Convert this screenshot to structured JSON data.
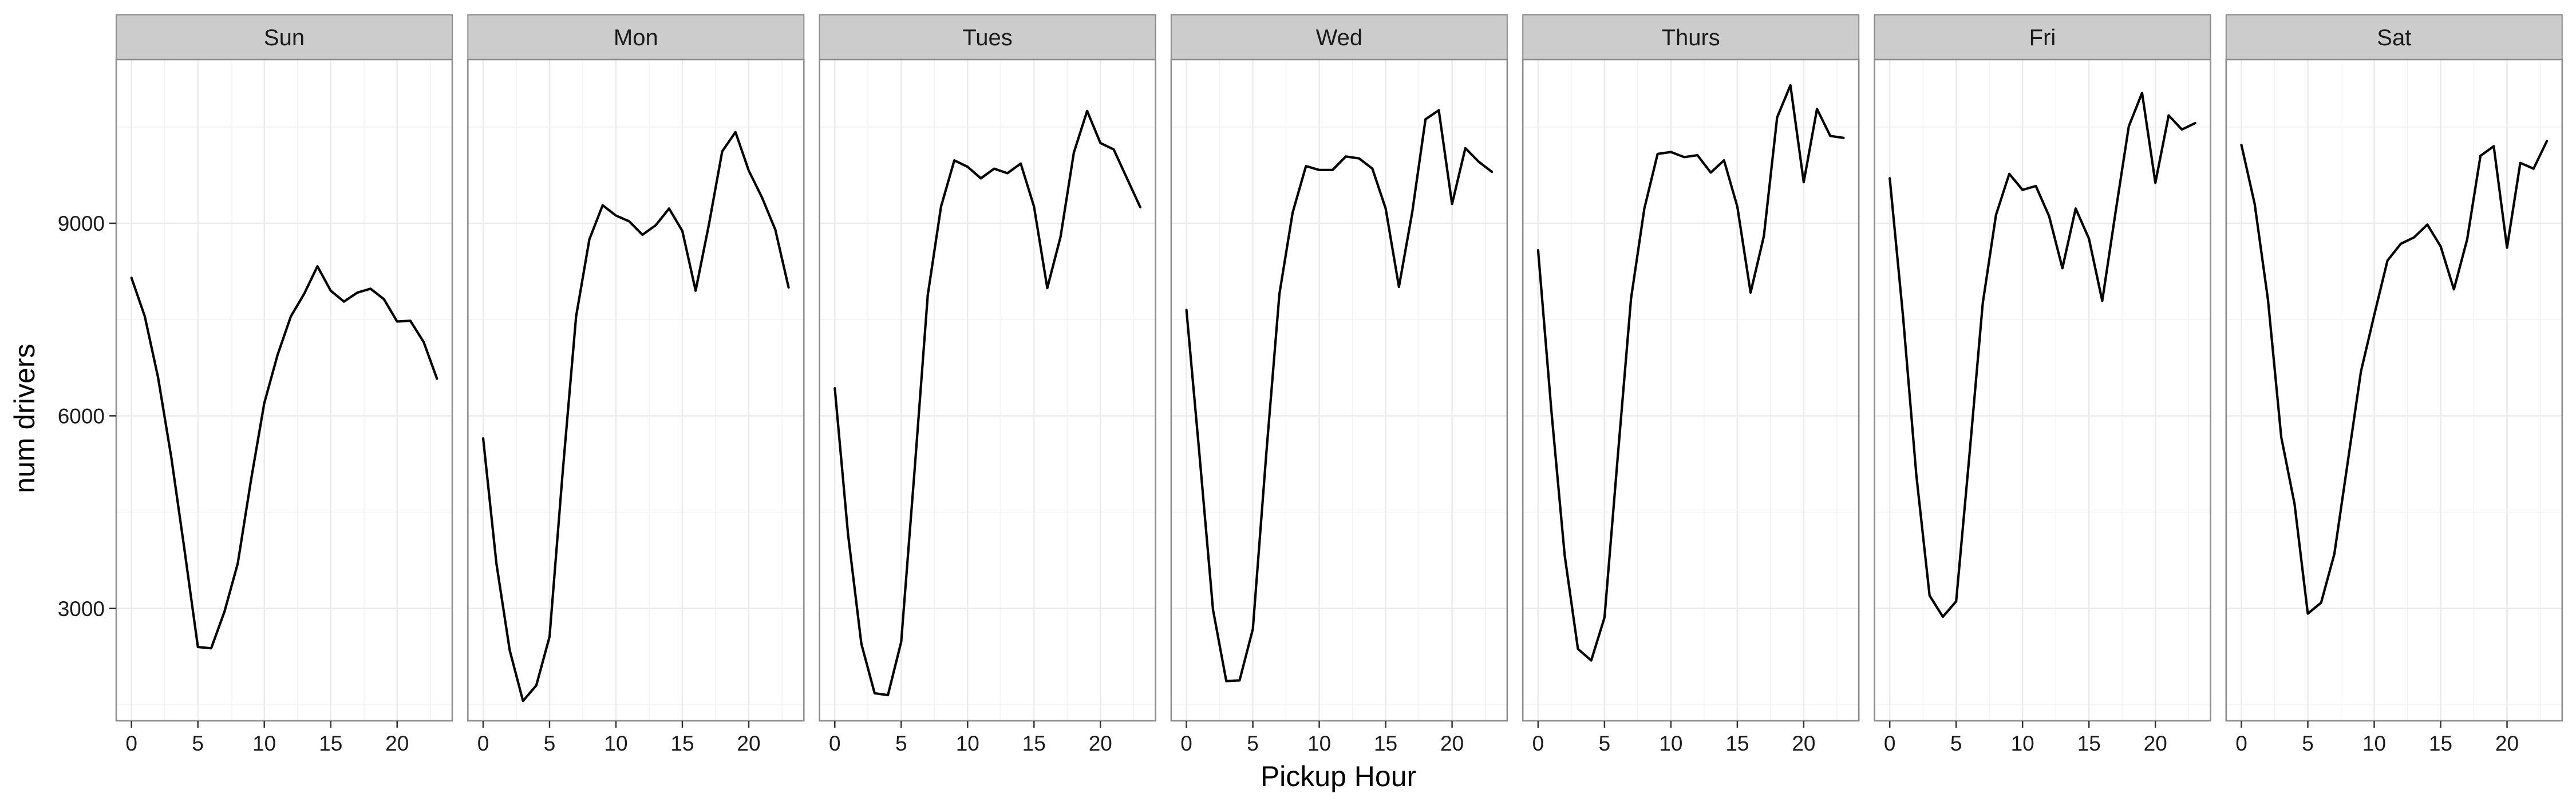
{
  "chart_data": {
    "type": "line",
    "layout": "facets",
    "xlabel": "Pickup Hour",
    "ylabel": "num drivers",
    "x_ticks": [
      0,
      5,
      10,
      15,
      20
    ],
    "y_ticks": [
      3000,
      6000,
      9000
    ],
    "xlim": [
      -1.15,
      24.15
    ],
    "ylim": [
      1250,
      11550
    ],
    "grid": true,
    "legend": "none",
    "line_color": "#000000",
    "strip_fill": "#cccccc",
    "panel_border": "#8c8c8c",
    "gridline_color": "#ebebeb",
    "x": [
      0,
      1,
      2,
      3,
      4,
      5,
      6,
      7,
      8,
      9,
      10,
      11,
      12,
      13,
      14,
      15,
      16,
      17,
      18,
      19,
      20,
      21,
      22,
      23
    ],
    "series": [
      {
        "name": "Sun",
        "values": [
          8150,
          7550,
          6600,
          5350,
          3900,
          2400,
          2380,
          2950,
          3700,
          5000,
          6200,
          6950,
          7550,
          7900,
          8330,
          7950,
          7780,
          7920,
          7980,
          7820,
          7470,
          7480,
          7150,
          6580
        ]
      },
      {
        "name": "Mon",
        "values": [
          5650,
          3700,
          2350,
          1560,
          1800,
          2560,
          5150,
          7550,
          8750,
          9280,
          9120,
          9030,
          8820,
          8970,
          9230,
          8880,
          7950,
          8980,
          10120,
          10420,
          9820,
          9400,
          8900,
          8000
        ]
      },
      {
        "name": "Tues",
        "values": [
          6430,
          4150,
          2450,
          1680,
          1650,
          2480,
          5130,
          7880,
          9260,
          9980,
          9880,
          9700,
          9850,
          9780,
          9930,
          9260,
          7990,
          8790,
          10100,
          10750,
          10250,
          10150,
          9700,
          9250
        ]
      },
      {
        "name": "Wed",
        "values": [
          7650,
          5350,
          2980,
          1870,
          1880,
          2680,
          5380,
          7900,
          9170,
          9890,
          9830,
          9830,
          10040,
          10010,
          9850,
          9230,
          8010,
          9170,
          10620,
          10760,
          9300,
          10170,
          9960,
          9800
        ]
      },
      {
        "name": "Thurs",
        "values": [
          8580,
          6080,
          3830,
          2370,
          2190,
          2860,
          5370,
          7830,
          9230,
          10080,
          10110,
          10030,
          10060,
          9790,
          9980,
          9260,
          7920,
          8800,
          10650,
          11150,
          9640,
          10780,
          10360,
          10330
        ]
      },
      {
        "name": "Fri",
        "values": [
          9700,
          7550,
          5080,
          3200,
          2870,
          3110,
          5390,
          7750,
          9130,
          9770,
          9520,
          9580,
          9110,
          8300,
          9230,
          8760,
          7790,
          9170,
          10510,
          11030,
          9630,
          10680,
          10460,
          10560
        ]
      },
      {
        "name": "Sat",
        "values": [
          10220,
          9300,
          7810,
          5670,
          4630,
          2920,
          3090,
          3850,
          5270,
          6690,
          7570,
          8420,
          8680,
          8780,
          8980,
          8640,
          7970,
          8750,
          10050,
          10200,
          8620,
          9940,
          9850,
          10280
        ]
      }
    ]
  }
}
